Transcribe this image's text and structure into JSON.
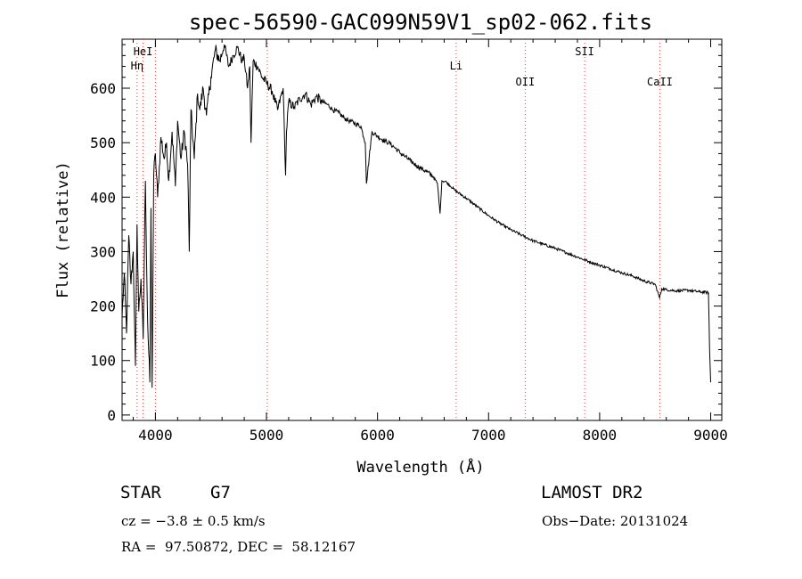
{
  "chart_data": {
    "type": "line",
    "title": "spec-56590-GAC099N59V1_sp02-062.fits",
    "xlabel": "Wavelength (Å)",
    "ylabel": "Flux (relative)",
    "xlim": [
      3700,
      9100
    ],
    "ylim": [
      -10,
      690
    ],
    "xticks": [
      4000,
      5000,
      6000,
      7000,
      8000,
      9000
    ],
    "yticks": [
      0,
      100,
      200,
      300,
      400,
      500,
      600
    ],
    "grid": false,
    "legend": "none",
    "line_color": "#000000",
    "marker_color": "#d04040",
    "series": [
      {
        "x": [
          3700,
          3720,
          3740,
          3760,
          3780,
          3800,
          3820,
          3835,
          3850,
          3870,
          3890,
          3910,
          3930,
          3950,
          3960,
          3970,
          3985,
          4000,
          4020,
          4050,
          4080,
          4100,
          4120,
          4150,
          4180,
          4200,
          4230,
          4260,
          4290,
          4305,
          4320,
          4350,
          4380,
          4400,
          4430,
          4460,
          4500,
          4540,
          4580,
          4620,
          4660,
          4700,
          4740,
          4780,
          4800,
          4830,
          4850,
          4861,
          4880,
          4920,
          4960,
          5000,
          5050,
          5100,
          5150,
          5172,
          5180,
          5200,
          5250,
          5300,
          5350,
          5400,
          5450,
          5500,
          5550,
          5600,
          5650,
          5700,
          5750,
          5800,
          5850,
          5890,
          5900,
          5950,
          6000,
          6050,
          6100,
          6150,
          6200,
          6250,
          6300,
          6350,
          6400,
          6450,
          6500,
          6540,
          6563,
          6580,
          6620,
          6700,
          6800,
          6900,
          7000,
          7100,
          7200,
          7300,
          7400,
          7500,
          7600,
          7700,
          7800,
          7900,
          8000,
          8100,
          8200,
          8300,
          8400,
          8500,
          8540,
          8560,
          8600,
          8700,
          8800,
          8900,
          8980,
          8990,
          9000
        ],
        "y": [
          180,
          260,
          150,
          330,
          240,
          300,
          90,
          350,
          190,
          250,
          140,
          430,
          170,
          60,
          380,
          50,
          440,
          480,
          400,
          510,
          470,
          500,
          430,
          520,
          420,
          540,
          470,
          520,
          460,
          300,
          560,
          470,
          590,
          560,
          600,
          550,
          620,
          670,
          650,
          680,
          640,
          660,
          675,
          650,
          655,
          600,
          640,
          500,
          650,
          640,
          620,
          610,
          595,
          560,
          600,
          440,
          520,
          575,
          565,
          580,
          590,
          570,
          585,
          575,
          570,
          560,
          555,
          545,
          540,
          535,
          530,
          500,
          425,
          520,
          512,
          505,
          500,
          492,
          482,
          474,
          466,
          458,
          452,
          446,
          438,
          425,
          370,
          430,
          428,
          412,
          398,
          382,
          366,
          352,
          340,
          330,
          320,
          313,
          306,
          298,
          290,
          282,
          275,
          268,
          261,
          255,
          246,
          240,
          215,
          232,
          230,
          228,
          229,
          226,
          225,
          120,
          60
        ],
        "color": "#000000"
      }
    ],
    "line_markers": [
      {
        "label": "Hη",
        "x": 3835
      },
      {
        "label": "HeI",
        "x": 3889
      },
      {
        "label": "",
        "x": 4000
      },
      {
        "label": "",
        "x": 5007
      },
      {
        "label": "Li",
        "x": 6708
      },
      {
        "label": "OII",
        "x": 7330
      },
      {
        "label": "SII",
        "x": 7865
      },
      {
        "label": "CaII",
        "x": 8542
      }
    ]
  },
  "info": {
    "object_class": "STAR",
    "subclass": "G7",
    "survey": "LAMOST DR2",
    "cz": "cz = −3.8 ± 0.5 km/s",
    "obs_date": "Obs−Date: 20131024",
    "radec": "RA =  97.50872, DEC =  58.12167"
  }
}
